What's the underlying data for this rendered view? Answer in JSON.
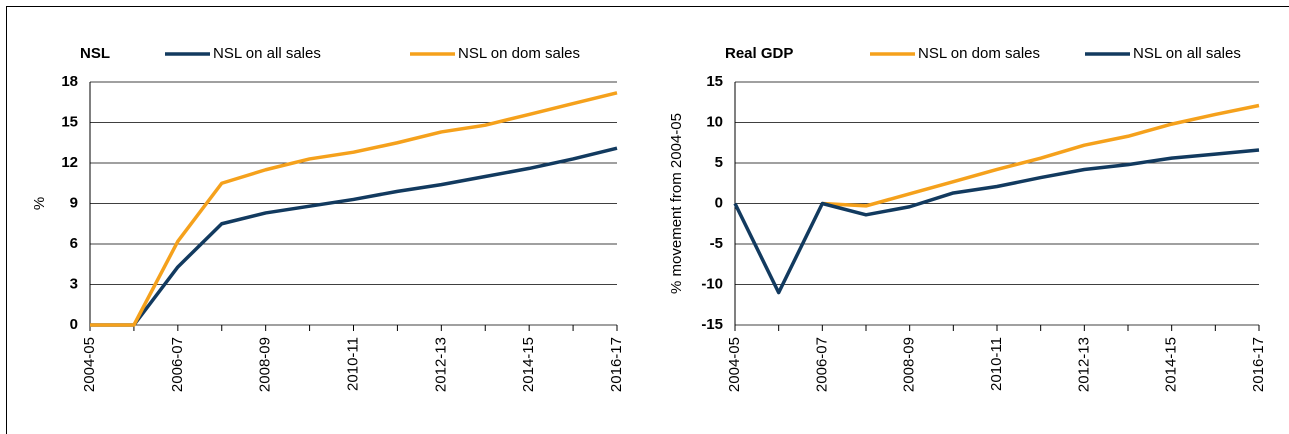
{
  "chart_data": [
    {
      "type": "line",
      "title": "NSL",
      "y_label": "%",
      "categories": [
        "2004-05",
        null,
        "2006-07",
        null,
        "2008-09",
        null,
        "2010-11",
        null,
        "2012-13",
        null,
        "2014-15",
        null,
        "2016-17"
      ],
      "series": [
        {
          "name": "NSL on all sales",
          "color": "#123a5f",
          "values": [
            0,
            0,
            4.3,
            7.5,
            8.3,
            8.8,
            9.3,
            9.9,
            10.4,
            11.0,
            11.6,
            12.3,
            13.1
          ]
        },
        {
          "name": "NSL on dom sales",
          "color": "#f5a11c",
          "values": [
            0,
            0,
            6.2,
            10.5,
            11.5,
            12.3,
            12.8,
            13.5,
            14.3,
            14.8,
            15.6,
            16.4,
            17.2
          ]
        }
      ],
      "ylim": [
        0,
        18
      ],
      "yticks": [
        0,
        3,
        6,
        9,
        12,
        15,
        18
      ],
      "grid": true
    },
    {
      "type": "line",
      "title": "Real GDP",
      "y_label": "% movement from 2004-05",
      "categories": [
        "2004-05",
        null,
        "2006-07",
        null,
        "2008-09",
        null,
        "2010-11",
        null,
        "2012-13",
        null,
        "2014-15",
        null,
        "2016-17"
      ],
      "series": [
        {
          "name": "NSL on dom sales",
          "color": "#f5a11c",
          "values": [
            null,
            null,
            0,
            -0.3,
            1.2,
            2.7,
            4.2,
            5.6,
            7.2,
            8.3,
            9.8,
            11.0,
            12.1
          ]
        },
        {
          "name": "NSL on all sales",
          "color": "#123a5f",
          "values": [
            0,
            -11,
            0,
            -1.4,
            -0.4,
            1.3,
            2.1,
            3.2,
            4.2,
            4.8,
            5.6,
            6.1,
            6.6
          ]
        }
      ],
      "ylim": [
        -15,
        15
      ],
      "yticks": [
        -15,
        -10,
        -5,
        0,
        5,
        10,
        15
      ],
      "grid": true
    }
  ]
}
